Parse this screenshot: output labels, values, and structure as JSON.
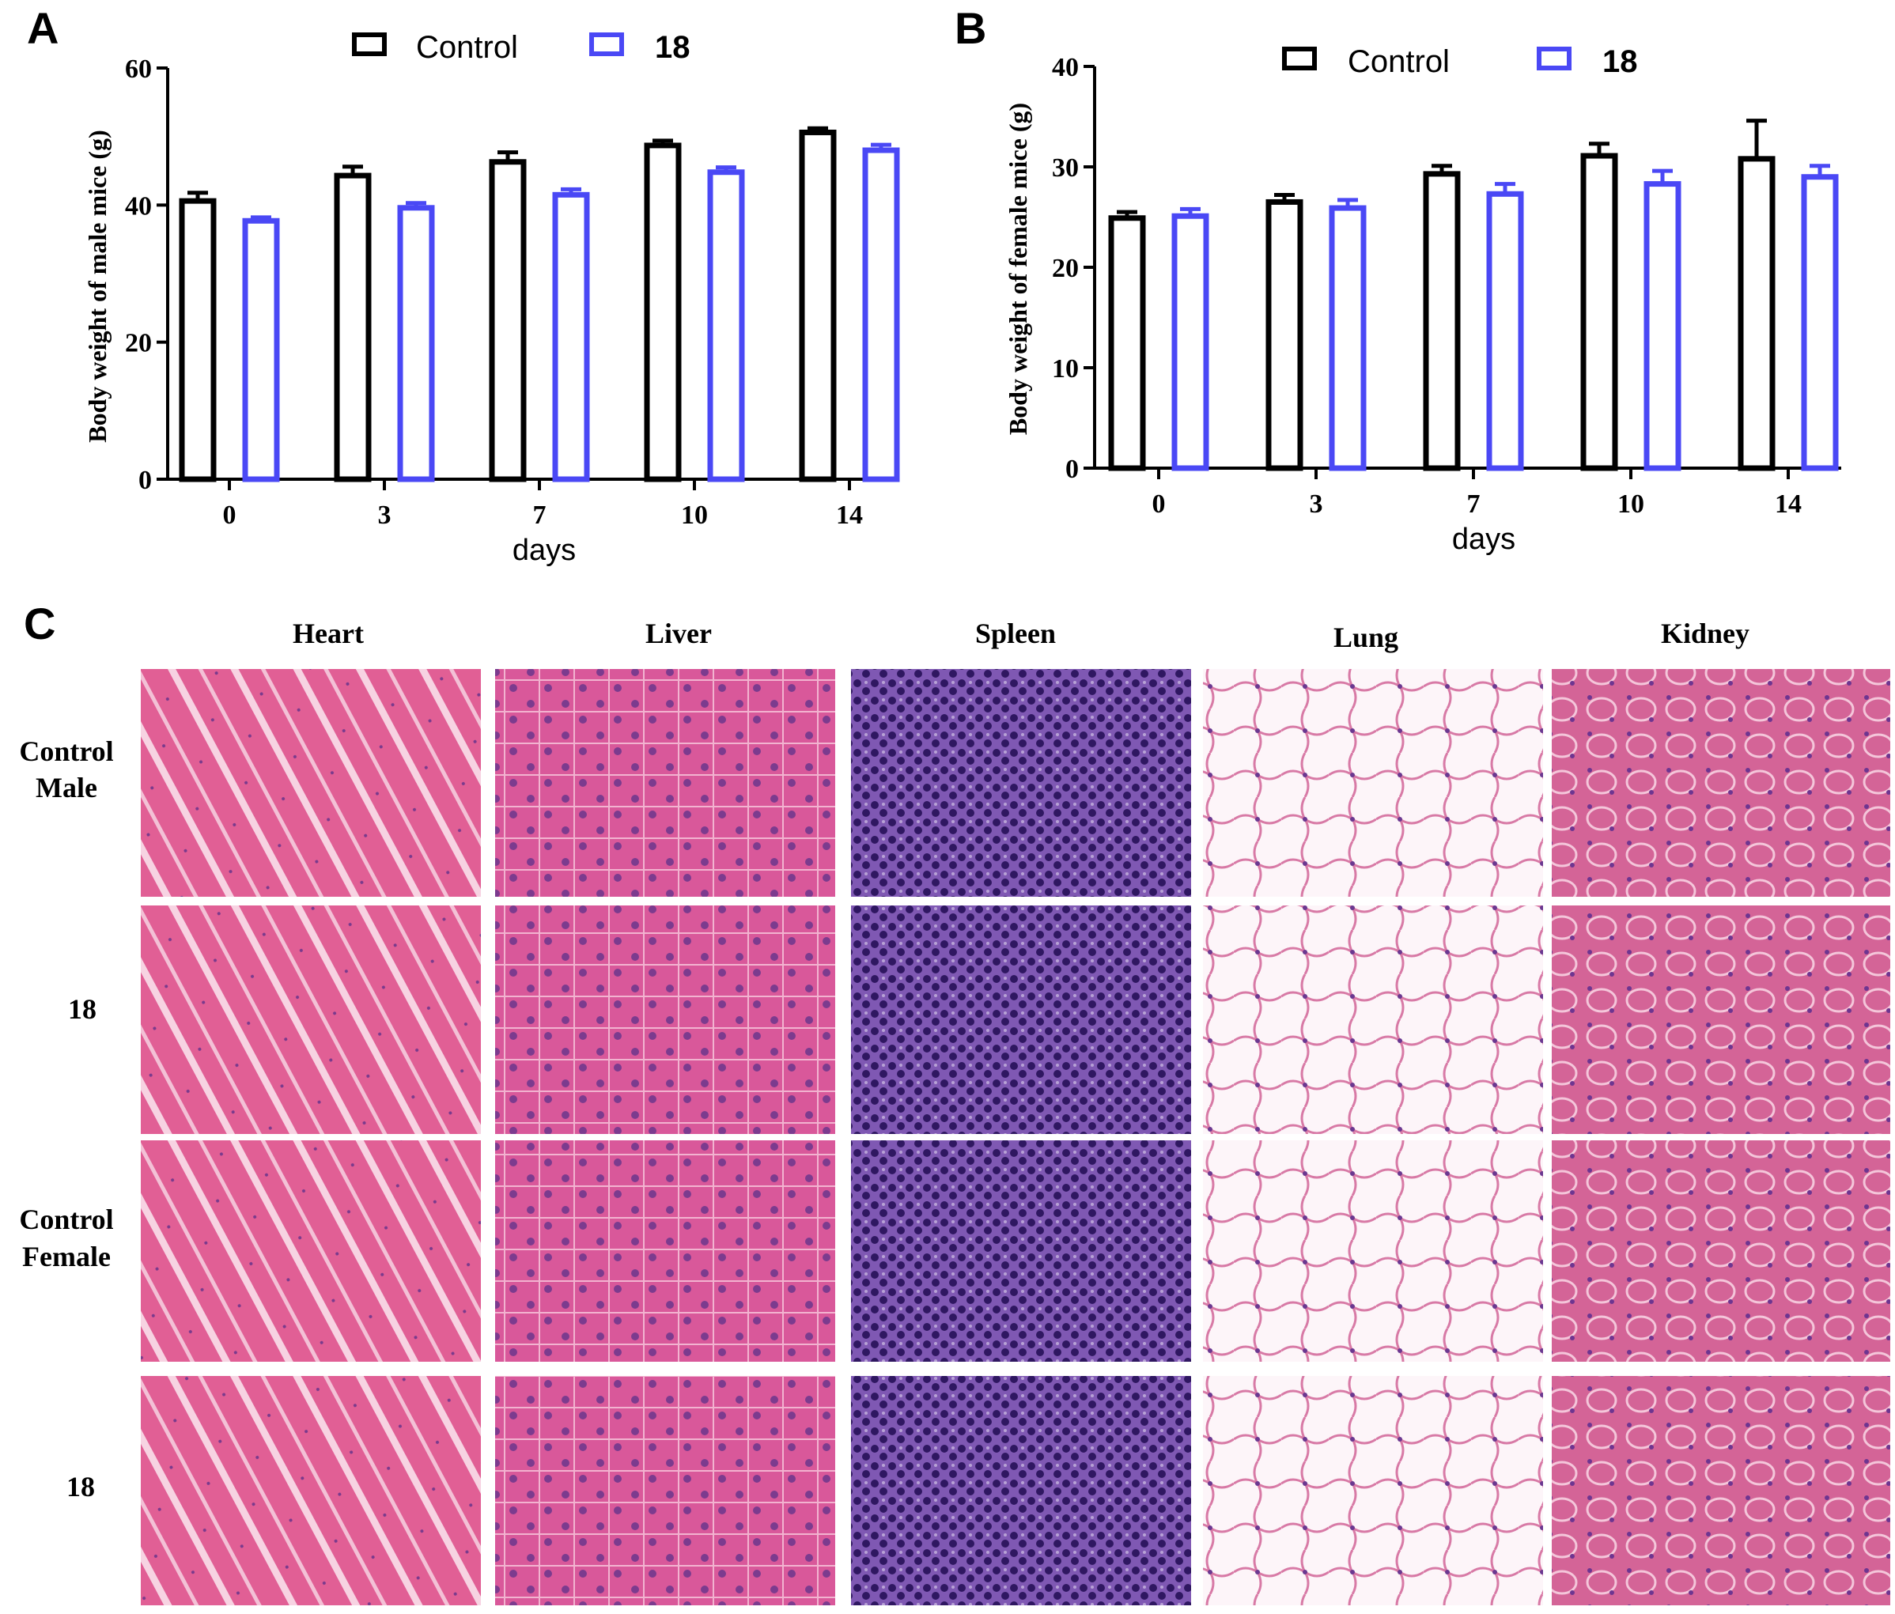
{
  "panel_labels": {
    "a": "A",
    "b": "B",
    "c": "C"
  },
  "colors": {
    "control": "#000000",
    "treated": "#4a48f5",
    "axis": "#000000",
    "tissue": {
      "Heart": [
        "#e56b9c",
        "#f4bcd2"
      ],
      "Liver": [
        "#d9589a",
        "#b74288"
      ],
      "Spleen": [
        "#5a2f86",
        "#3d1d6d"
      ],
      "Lung": [
        "#fdf3f8",
        "#d97aa6"
      ],
      "Kidney": [
        "#d66597",
        "#b9498a"
      ]
    }
  },
  "chart_data": [
    {
      "type": "bar",
      "panel": "A",
      "categories": [
        "0",
        "3",
        "7",
        "10",
        "14"
      ],
      "series": [
        {
          "name": "Control",
          "values": [
            40.6,
            44.3,
            46.3,
            48.7,
            50.6
          ],
          "errors": [
            1.2,
            1.3,
            1.4,
            0.7,
            0.6
          ]
        },
        {
          "name": "18",
          "values": [
            37.7,
            39.6,
            41.5,
            44.8,
            48.0
          ],
          "errors": [
            0.5,
            0.7,
            0.8,
            0.7,
            0.8
          ]
        }
      ],
      "title": "",
      "xlabel": "days",
      "ylabel": "Body weight of male mice (g)",
      "ylim": [
        0,
        60
      ],
      "yticks": [
        0,
        20,
        40,
        60
      ],
      "legend": "top-center"
    },
    {
      "type": "bar",
      "panel": "B",
      "categories": [
        "0",
        "3",
        "7",
        "10",
        "14"
      ],
      "series": [
        {
          "name": "Control",
          "values": [
            24.9,
            26.5,
            29.3,
            31.1,
            30.8
          ],
          "errors": [
            0.6,
            0.7,
            0.8,
            1.2,
            3.8
          ]
        },
        {
          "name": "18",
          "values": [
            25.1,
            25.9,
            27.3,
            28.3,
            29.0
          ],
          "errors": [
            0.7,
            0.8,
            1.0,
            1.3,
            1.1
          ]
        }
      ],
      "title": "",
      "xlabel": "days",
      "ylabel": "Body weight of female mice (g)",
      "ylim": [
        0,
        40
      ],
      "yticks": [
        0,
        10,
        20,
        30,
        40
      ],
      "legend": "top-center"
    }
  ],
  "histology": {
    "columns": [
      "Heart",
      "Liver",
      "Spleen",
      "Lung",
      "Kidney"
    ],
    "rows": [
      [
        "Control",
        "Male"
      ],
      [
        "18"
      ],
      [
        "Control",
        "Female"
      ],
      [
        "18"
      ]
    ]
  }
}
